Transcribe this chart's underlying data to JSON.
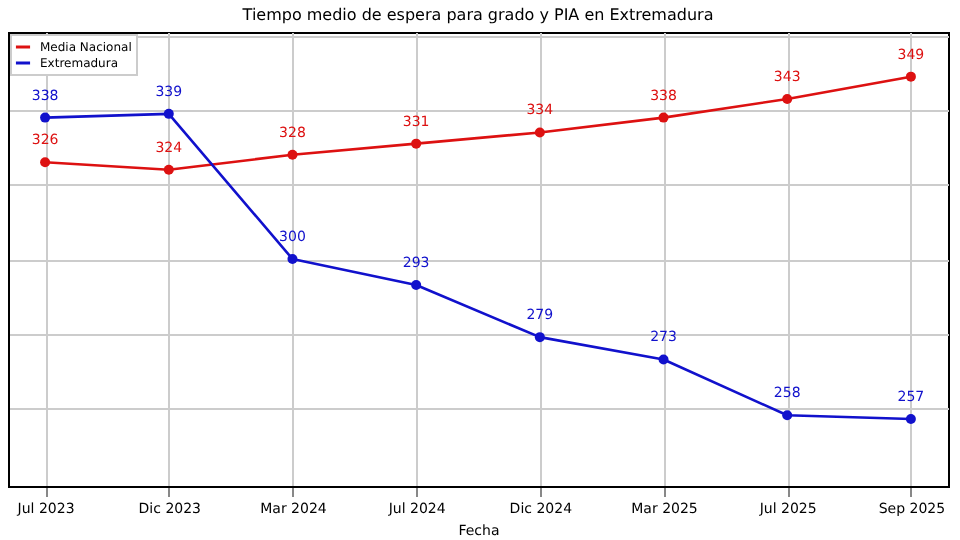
{
  "chart_data": {
    "type": "line",
    "title": "Tiempo medio de espera para grado y PIA en Extremadura",
    "xlabel": "Fecha",
    "categories": [
      "Jul 2023",
      "Dic 2023",
      "Mar 2024",
      "Jul 2024",
      "Dic 2024",
      "Mar 2025",
      "Jul 2025",
      "Sep 2025"
    ],
    "series": [
      {
        "name": "Media Nacional",
        "color": "#dd1111",
        "values": [
          326,
          324,
          328,
          331,
          334,
          338,
          343,
          349
        ]
      },
      {
        "name": "Extremadura",
        "color": "#1111cc",
        "values": [
          338,
          339,
          300,
          293,
          279,
          273,
          258,
          257
        ]
      }
    ],
    "ylim": [
      239,
      361
    ],
    "yticks": [
      {
        "value": 260,
        "label": null
      },
      {
        "value": 280,
        "label": null
      },
      {
        "value": 300,
        "label": null
      },
      {
        "value": 320,
        "label": null
      },
      {
        "value": 340,
        "label": null
      },
      {
        "value": 360,
        "label": null
      }
    ],
    "tick_labels": "x",
    "grid": true,
    "legend": "top left",
    "marker": "circle",
    "line_style": "solid",
    "data_labels": true
  }
}
